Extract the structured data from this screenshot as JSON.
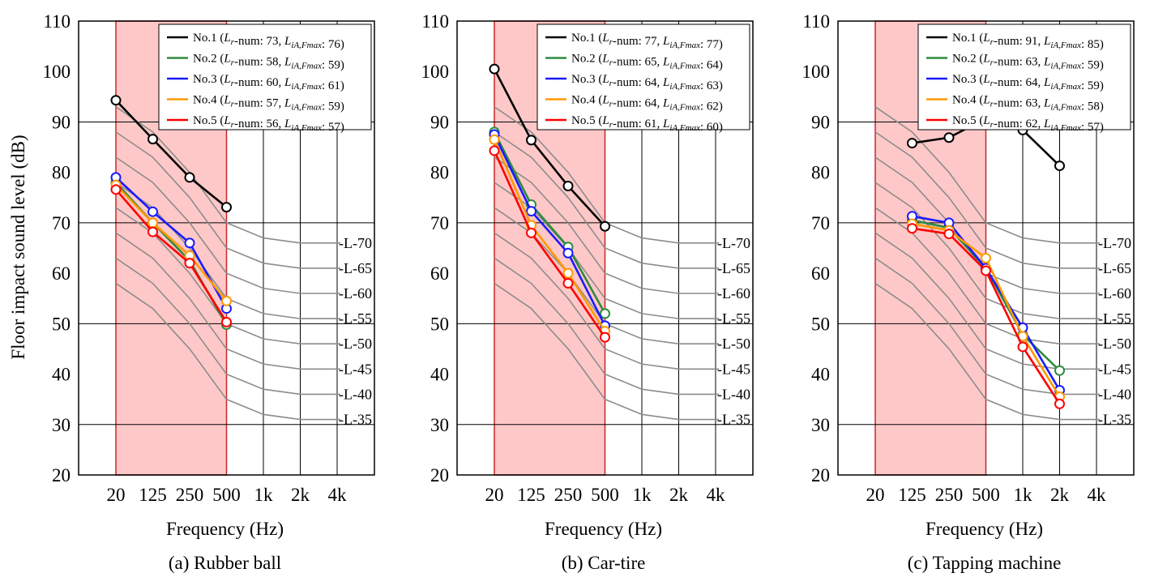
{
  "figure": {
    "ylabel": "Floor impact sound level (dB)",
    "ytick_labels": [
      "20",
      "30",
      "40",
      "50",
      "60",
      "70",
      "80",
      "90",
      "100",
      "110"
    ],
    "colors": {
      "highlight_fill": "#ffc8c8",
      "highlight_border": "#c62828",
      "reference_curve": "#8c8c8c",
      "grid": "#000000"
    }
  },
  "chart_data": [
    {
      "type": "line",
      "caption": "(a) Rubber ball",
      "xlabel": "Frequency (Hz)",
      "categories": [
        "20",
        "125",
        "250",
        "500",
        "1k",
        "2k",
        "4k"
      ],
      "ylim": [
        20,
        110
      ],
      "highlight_range": [
        "20",
        "500"
      ],
      "reference_curves": [
        {
          "label": "-L-70",
          "values": [
            93,
            88,
            80,
            70,
            67,
            66,
            66
          ]
        },
        {
          "label": "-L-65",
          "values": [
            88,
            83,
            75,
            65,
            62,
            61,
            61
          ]
        },
        {
          "label": "-L-60",
          "values": [
            83,
            78,
            70,
            60,
            57,
            56,
            56
          ]
        },
        {
          "label": "-L-55",
          "values": [
            78,
            73,
            65,
            55,
            52,
            51,
            51
          ]
        },
        {
          "label": "-L-50",
          "values": [
            73,
            68,
            60,
            50,
            47,
            46,
            46
          ]
        },
        {
          "label": "-L-45",
          "values": [
            68,
            63,
            55,
            45,
            42,
            41,
            41
          ]
        },
        {
          "label": "-L-40",
          "values": [
            63,
            58,
            50,
            40,
            37,
            36,
            36
          ]
        },
        {
          "label": "-L-35",
          "values": [
            58,
            53,
            45,
            35,
            32,
            31,
            31
          ]
        }
      ],
      "series": [
        {
          "name": "No.1",
          "lr": "73",
          "lia": "76",
          "color": "#000000",
          "values": [
            94.3,
            86.6,
            79.0,
            73.1,
            null,
            null,
            null
          ]
        },
        {
          "name": "No.2",
          "lr": "58",
          "lia": "59",
          "color": "#2e8b3e",
          "values": [
            78.0,
            70.0,
            62.5,
            49.8,
            null,
            null,
            null
          ]
        },
        {
          "name": "No.3",
          "lr": "60",
          "lia": "61",
          "color": "#1a1aff",
          "values": [
            79.0,
            72.2,
            66.0,
            53.0,
            null,
            null,
            null
          ]
        },
        {
          "name": "No.4",
          "lr": "57",
          "lia": "59",
          "color": "#ff9900",
          "values": [
            77.5,
            70.0,
            63.5,
            54.5,
            null,
            null,
            null
          ]
        },
        {
          "name": "No.5",
          "lr": "56",
          "lia": "57",
          "color": "#ff0000",
          "values": [
            76.6,
            68.2,
            62.0,
            50.3,
            null,
            null,
            null
          ]
        }
      ]
    },
    {
      "type": "line",
      "caption": "(b) Car-tire",
      "xlabel": "Frequency (Hz)",
      "categories": [
        "20",
        "125",
        "250",
        "500",
        "1k",
        "2k",
        "4k"
      ],
      "ylim": [
        20,
        110
      ],
      "highlight_range": [
        "20",
        "500"
      ],
      "reference_curves": [
        {
          "label": "-L-70",
          "values": [
            93,
            88,
            80,
            70,
            67,
            66,
            66
          ]
        },
        {
          "label": "-L-65",
          "values": [
            88,
            83,
            75,
            65,
            62,
            61,
            61
          ]
        },
        {
          "label": "-L-60",
          "values": [
            83,
            78,
            70,
            60,
            57,
            56,
            56
          ]
        },
        {
          "label": "-L-55",
          "values": [
            78,
            73,
            65,
            55,
            52,
            51,
            51
          ]
        },
        {
          "label": "-L-50",
          "values": [
            73,
            68,
            60,
            50,
            47,
            46,
            46
          ]
        },
        {
          "label": "-L-45",
          "values": [
            68,
            63,
            55,
            45,
            42,
            41,
            41
          ]
        },
        {
          "label": "-L-40",
          "values": [
            63,
            58,
            50,
            40,
            37,
            36,
            36
          ]
        },
        {
          "label": "-L-35",
          "values": [
            58,
            53,
            45,
            35,
            32,
            31,
            31
          ]
        }
      ],
      "series": [
        {
          "name": "No.1",
          "lr": "77",
          "lia": "77",
          "color": "#000000",
          "values": [
            100.5,
            86.4,
            77.3,
            69.3,
            null,
            null,
            null
          ]
        },
        {
          "name": "No.2",
          "lr": "65",
          "lia": "64",
          "color": "#2e8b3e",
          "values": [
            88.0,
            73.6,
            65.2,
            52.0,
            null,
            null,
            null
          ]
        },
        {
          "name": "No.3",
          "lr": "64",
          "lia": "63",
          "color": "#1a1aff",
          "values": [
            87.5,
            72.3,
            64.0,
            49.6,
            null,
            null,
            null
          ]
        },
        {
          "name": "No.4",
          "lr": "64",
          "lia": "62",
          "color": "#ff9900",
          "values": [
            86.5,
            69.5,
            60.0,
            48.5,
            null,
            null,
            null
          ]
        },
        {
          "name": "No.5",
          "lr": "61",
          "lia": "60",
          "color": "#ff0000",
          "values": [
            84.3,
            68.0,
            58.0,
            47.3,
            null,
            null,
            null
          ]
        }
      ]
    },
    {
      "type": "line",
      "caption": "(c) Tapping machine",
      "xlabel": "Frequency (Hz)",
      "categories": [
        "20",
        "125",
        "250",
        "500",
        "1k",
        "2k",
        "4k"
      ],
      "ylim": [
        20,
        110
      ],
      "highlight_range": [
        "20",
        "500"
      ],
      "reference_curves": [
        {
          "label": "-L-70",
          "values": [
            93,
            88,
            80,
            70,
            67,
            66,
            66
          ]
        },
        {
          "label": "-L-65",
          "values": [
            88,
            83,
            75,
            65,
            62,
            61,
            61
          ]
        },
        {
          "label": "-L-60",
          "values": [
            83,
            78,
            70,
            60,
            57,
            56,
            56
          ]
        },
        {
          "label": "-L-55",
          "values": [
            78,
            73,
            65,
            55,
            52,
            51,
            51
          ]
        },
        {
          "label": "-L-50",
          "values": [
            73,
            68,
            60,
            50,
            47,
            46,
            46
          ]
        },
        {
          "label": "-L-45",
          "values": [
            68,
            63,
            55,
            45,
            42,
            41,
            41
          ]
        },
        {
          "label": "-L-40",
          "values": [
            63,
            58,
            50,
            40,
            37,
            36,
            36
          ]
        },
        {
          "label": "-L-35",
          "values": [
            58,
            53,
            45,
            35,
            32,
            31,
            31
          ]
        }
      ],
      "series": [
        {
          "name": "No.1",
          "lr": "91",
          "lia": "85",
          "color": "#000000",
          "values": [
            null,
            85.8,
            86.9,
            90.7,
            88.4,
            81.3,
            null
          ]
        },
        {
          "name": "No.2",
          "lr": "63",
          "lia": "59",
          "color": "#2e8b3e",
          "values": [
            null,
            70.5,
            69.0,
            61.0,
            47.8,
            40.7,
            null
          ]
        },
        {
          "name": "No.3",
          "lr": "64",
          "lia": "59",
          "color": "#1a1aff",
          "values": [
            null,
            71.3,
            70.0,
            61.0,
            49.2,
            36.8,
            null
          ]
        },
        {
          "name": "No.4",
          "lr": "63",
          "lia": "58",
          "color": "#ff9900",
          "values": [
            null,
            69.8,
            68.5,
            63.0,
            47.5,
            35.5,
            null
          ]
        },
        {
          "name": "No.5",
          "lr": "62",
          "lia": "57",
          "color": "#ff0000",
          "values": [
            null,
            68.9,
            67.8,
            60.5,
            45.4,
            34.1,
            null
          ]
        }
      ]
    }
  ]
}
